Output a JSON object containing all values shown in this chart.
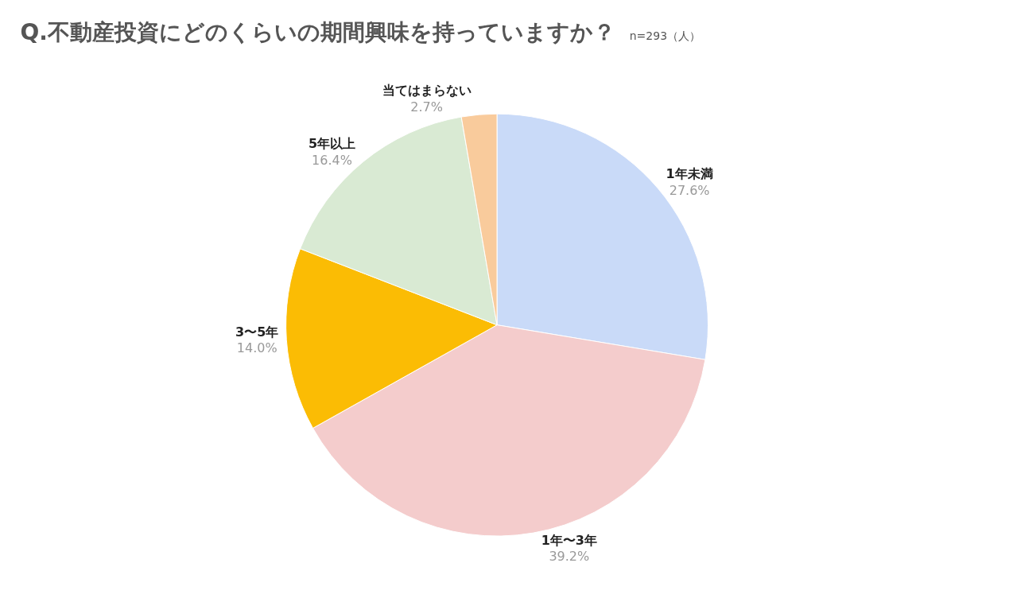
{
  "chart_data": {
    "type": "pie",
    "title": "Q.不動産投資にどのくらいの期間興味を持っていますか？",
    "subtitle": "n=293（人）",
    "categories": [
      "1年未満",
      "1年〜3年",
      "3〜5年",
      "5年以上",
      "当てはまらない"
    ],
    "values": [
      27.6,
      39.2,
      14.0,
      16.4,
      2.7
    ],
    "value_labels": [
      "27.6%",
      "39.2%",
      "14.0%",
      "16.4%",
      "2.7%"
    ],
    "colors": [
      "#c9daf8",
      "#f4cccc",
      "#fbbc04",
      "#d9ead3",
      "#f9cb9c"
    ],
    "legend": false
  }
}
